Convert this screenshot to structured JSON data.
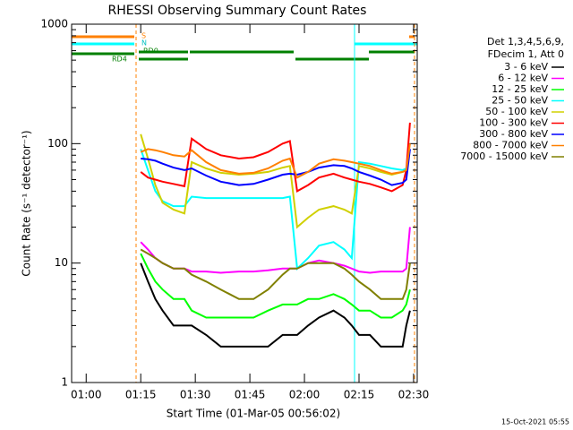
{
  "chart_data": {
    "type": "line",
    "title": "RHESSI Observing Summary Count Rates",
    "x_label": "Start Time (01-Mar-05 00:56:02)",
    "y_label": "Count Rate (s⁻¹ detector⁻¹)",
    "legend_title": [
      "Det 1,3,4,5,6,9,",
      "FDecim 1, Att 0"
    ],
    "annotations": [
      "S",
      "N",
      "RD0",
      "RD4"
    ],
    "timestamp": "15-Oct-2021 05:55",
    "log_y": true,
    "xlim": [
      56,
      151
    ],
    "ylim": [
      1,
      1000
    ],
    "yticks": [
      1,
      10,
      100,
      1000
    ],
    "xticks": [
      {
        "value": 60,
        "label": "01:00"
      },
      {
        "value": 75,
        "label": "01:15"
      },
      {
        "value": 90,
        "label": "01:30"
      },
      {
        "value": 105,
        "label": "01:45"
      },
      {
        "value": 120,
        "label": "02:00"
      },
      {
        "value": 135,
        "label": "02:15"
      },
      {
        "value": 150,
        "label": "02:30"
      }
    ],
    "x": [
      75,
      77,
      79,
      81,
      84,
      87,
      89,
      93,
      97,
      102,
      106,
      110,
      114,
      116,
      118,
      121,
      124,
      128,
      131,
      133,
      135,
      138,
      141,
      144,
      147,
      148,
      149
    ],
    "series": [
      {
        "name": "3 - 6 keV",
        "color": "#000000",
        "values": [
          10,
          7,
          5,
          4,
          3,
          3,
          3,
          2.5,
          2,
          2,
          2,
          2,
          2.5,
          2.5,
          2.5,
          3,
          3.5,
          4,
          3.5,
          3,
          2.5,
          2.5,
          2,
          2,
          2,
          3,
          4
        ]
      },
      {
        "name": "6 - 12 keV",
        "color": "#ff00ff",
        "values": [
          15,
          13,
          11,
          10,
          9,
          9,
          8.5,
          8.5,
          8.3,
          8.5,
          8.5,
          8.7,
          9,
          9,
          9,
          10,
          10.5,
          10,
          9.5,
          9,
          8.5,
          8.3,
          8.5,
          8.5,
          8.5,
          9,
          20
        ]
      },
      {
        "name": "12 - 25 keV",
        "color": "#00ff00",
        "values": [
          12,
          9,
          7,
          6,
          5,
          5,
          4,
          3.5,
          3.5,
          3.5,
          3.5,
          4,
          4.5,
          4.5,
          4.5,
          5,
          5,
          5.5,
          5,
          4.5,
          4,
          4,
          3.5,
          3.5,
          4,
          4.5,
          6
        ]
      },
      {
        "name": "25 - 50 keV",
        "color": "#00ffff",
        "values": [
          90,
          60,
          40,
          33,
          30,
          30,
          36,
          35,
          35,
          35,
          35,
          35,
          35,
          36,
          9,
          11,
          14,
          15,
          13,
          11,
          70,
          68,
          65,
          62,
          60,
          62,
          90
        ]
      },
      {
        "name": "50 - 100 keV",
        "color": "#d0d000",
        "values": [
          120,
          75,
          45,
          32,
          28,
          26,
          70,
          62,
          57,
          55,
          56,
          58,
          63,
          65,
          20,
          24,
          28,
          30,
          28,
          26,
          65,
          62,
          58,
          55,
          58,
          60,
          90
        ]
      },
      {
        "name": "100 - 300 keV",
        "color": "#ff0000",
        "values": [
          58,
          52,
          50,
          48,
          46,
          44,
          110,
          90,
          80,
          75,
          77,
          85,
          100,
          105,
          40,
          45,
          52,
          56,
          52,
          50,
          48,
          46,
          43,
          40,
          45,
          60,
          150
        ]
      },
      {
        "name": "300 - 800 keV",
        "color": "#0000ff",
        "values": [
          75,
          74,
          72,
          68,
          63,
          60,
          62,
          54,
          48,
          45,
          46,
          50,
          55,
          56,
          55,
          58,
          63,
          66,
          65,
          62,
          58,
          54,
          50,
          45,
          47,
          50,
          90
        ]
      },
      {
        "name": "800 - 7000 keV",
        "color": "#ff8000",
        "values": [
          85,
          90,
          88,
          85,
          80,
          78,
          88,
          70,
          60,
          56,
          57,
          62,
          72,
          75,
          52,
          58,
          68,
          74,
          72,
          70,
          68,
          65,
          60,
          56,
          58,
          60,
          100
        ]
      },
      {
        "name": "7000 - 15000 keV",
        "color": "#808000",
        "values": [
          13,
          12,
          11,
          10,
          9,
          9,
          8,
          7,
          6,
          5,
          5,
          6,
          8,
          9,
          9,
          10,
          10,
          10,
          9,
          8,
          7,
          6,
          5,
          5,
          5,
          6,
          10
        ]
      }
    ]
  }
}
